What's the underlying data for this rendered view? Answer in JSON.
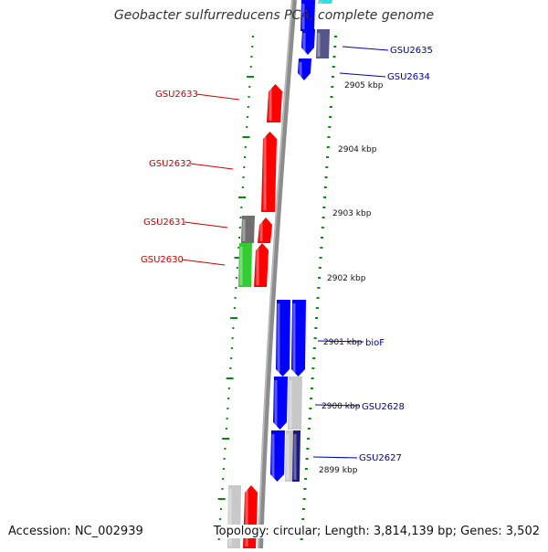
{
  "title": "Geobacter sulfurreducens PCA, complete genome",
  "footer": {
    "accession": "Accession: NC_002939",
    "summary": "Topology: circular; Length: 3,814,139 bp; Genes: 3,502"
  },
  "colors": {
    "backbone": "#8c8c8c",
    "tick": "#0a8a0a",
    "forward_gene": "#ff0000",
    "reverse_gene": "#0000ff",
    "label_forward": "#cc0000",
    "label_reverse": "#0000aa",
    "gray_gene": "#6e6e6e",
    "light_gray_gene": "#c8c8c8",
    "green_gene": "#33cc33",
    "cyan_gene": "#33dddd",
    "navy_gene": "#1a1a80",
    "slate_gene": "#55558a"
  },
  "kbp_labels": [
    {
      "text": "2905 kbp"
    },
    {
      "text": "2904 kbp"
    },
    {
      "text": "2903 kbp"
    },
    {
      "text": "2902 kbp"
    },
    {
      "text": "2901 kbp"
    },
    {
      "text": "2900 kbp"
    },
    {
      "text": "2899 kbp"
    }
  ],
  "gene_labels_left": [
    {
      "text": "GSU2633"
    },
    {
      "text": "GSU2632"
    },
    {
      "text": "GSU2631"
    },
    {
      "text": "GSU2630"
    }
  ],
  "gene_labels_right": [
    {
      "text": "GSU2635"
    },
    {
      "text": "GSU2634"
    },
    {
      "text": "bioF"
    },
    {
      "text": "GSU2628"
    },
    {
      "text": "GSU2627"
    }
  ]
}
